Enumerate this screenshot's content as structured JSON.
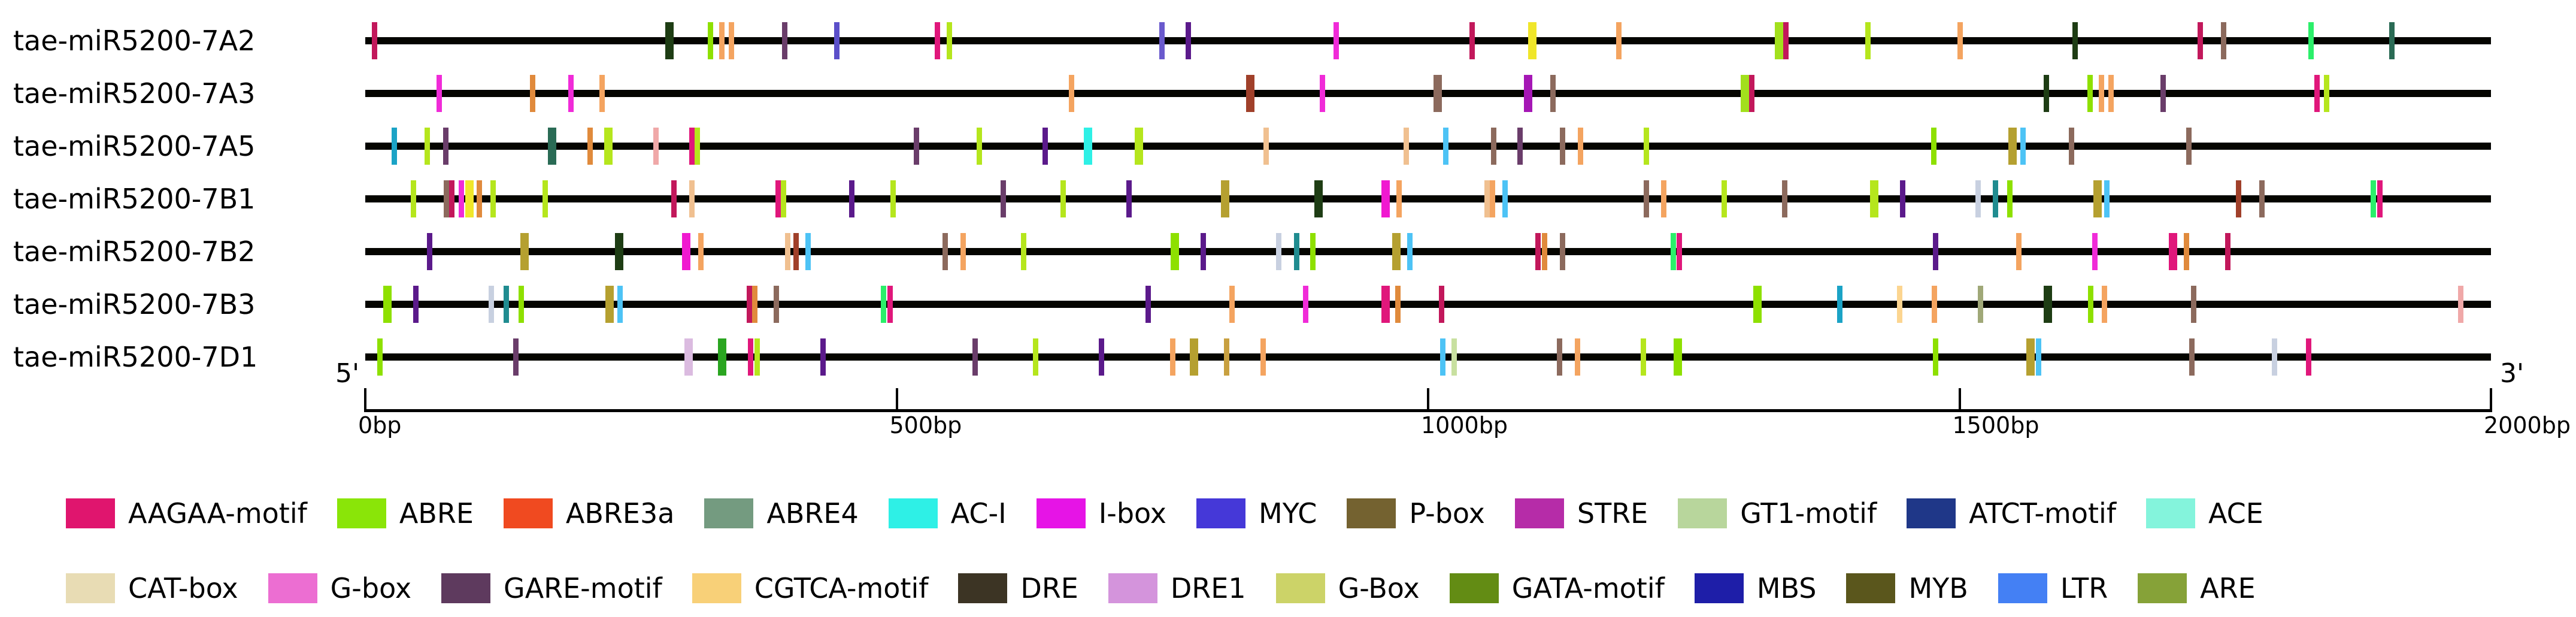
{
  "chart_data": {
    "type": "diagram",
    "title": "",
    "axis": {
      "start_label": "5'",
      "end_label": "3'",
      "ticks": [
        "0bp",
        "500bp",
        "1000bp",
        "1500bp",
        "2000bp"
      ],
      "range": [
        0,
        2000
      ],
      "unit": "bp"
    },
    "genes": [
      {
        "name": "tae-miR5200-7A2",
        "markers": [
          {
            "bp": 6,
            "color": "#c2185b"
          },
          {
            "bp": 282,
            "color": "#1e3d14",
            "wide": true
          },
          {
            "bp": 322,
            "color": "#8ee000"
          },
          {
            "bp": 333,
            "color": "#f4a460"
          },
          {
            "bp": 342,
            "color": "#f4a460"
          },
          {
            "bp": 392,
            "color": "#6a3d6a"
          },
          {
            "bp": 441,
            "color": "#5b4fc9"
          },
          {
            "bp": 536,
            "color": "#e0177b"
          },
          {
            "bp": 547,
            "color": "#b5e61d"
          },
          {
            "bp": 747,
            "color": "#6a5acd"
          },
          {
            "bp": 772,
            "color": "#5b1a8b"
          },
          {
            "bp": 911,
            "color": "#f02bd8"
          },
          {
            "bp": 1039,
            "color": "#c2185b"
          },
          {
            "bp": 1094,
            "color": "#f0e62a",
            "wide": true
          },
          {
            "bp": 1177,
            "color": "#f4a460"
          },
          {
            "bp": 1326,
            "color": "#a2e01d",
            "wide": true
          },
          {
            "bp": 1334,
            "color": "#c2185b"
          },
          {
            "bp": 1411,
            "color": "#b5e61d"
          },
          {
            "bp": 1498,
            "color": "#f4a460"
          },
          {
            "bp": 1606,
            "color": "#1e3d14"
          },
          {
            "bp": 1724,
            "color": "#c2185b"
          },
          {
            "bp": 1746,
            "color": "#8c6a5d"
          },
          {
            "bp": 1828,
            "color": "#2bef6a"
          },
          {
            "bp": 1904,
            "color": "#2a6b55"
          }
        ]
      },
      {
        "name": "tae-miR5200-7A3",
        "markers": [
          {
            "bp": 67,
            "color": "#f02bd8"
          },
          {
            "bp": 155,
            "color": "#e08a3c"
          },
          {
            "bp": 191,
            "color": "#f02bd8"
          },
          {
            "bp": 220,
            "color": "#f4a460"
          },
          {
            "bp": 662,
            "color": "#f4a460"
          },
          {
            "bp": 829,
            "color": "#a0402a",
            "wide": true
          },
          {
            "bp": 898,
            "color": "#f02bd8"
          },
          {
            "bp": 1005,
            "color": "#8c6a5d",
            "wide": true
          },
          {
            "bp": 1090,
            "color": "#a517b5",
            "wide": true
          },
          {
            "bp": 1115,
            "color": "#8c6a5d"
          },
          {
            "bp": 1294,
            "color": "#a2e01d",
            "wide": true
          },
          {
            "bp": 1302,
            "color": "#c2185b"
          },
          {
            "bp": 1579,
            "color": "#1e3d14"
          },
          {
            "bp": 1620,
            "color": "#8ee000"
          },
          {
            "bp": 1631,
            "color": "#f4a460"
          },
          {
            "bp": 1640,
            "color": "#f4a460"
          },
          {
            "bp": 1689,
            "color": "#6a3d6a"
          },
          {
            "bp": 1834,
            "color": "#e0177b"
          },
          {
            "bp": 1843,
            "color": "#b5e61d"
          }
        ]
      },
      {
        "name": "tae-miR5200-7A5",
        "markers": [
          {
            "bp": 25,
            "color": "#1ba3c6"
          },
          {
            "bp": 56,
            "color": "#b5e61d"
          },
          {
            "bp": 73,
            "color": "#6a3d6a"
          },
          {
            "bp": 172,
            "color": "#2a6b55",
            "wide": true
          },
          {
            "bp": 209,
            "color": "#e08a3c"
          },
          {
            "bp": 225,
            "color": "#b5e61d",
            "wide": true
          },
          {
            "bp": 271,
            "color": "#f0a8a8"
          },
          {
            "bp": 305,
            "color": "#e0177b"
          },
          {
            "bp": 310,
            "color": "#b5e61d"
          },
          {
            "bp": 516,
            "color": "#6a3d6a"
          },
          {
            "bp": 575,
            "color": "#b5e61d"
          },
          {
            "bp": 637,
            "color": "#5b1a8b"
          },
          {
            "bp": 676,
            "color": "#2ef0e6",
            "wide": true
          },
          {
            "bp": 724,
            "color": "#b5e61d",
            "wide": true
          },
          {
            "bp": 845,
            "color": "#f0c090"
          },
          {
            "bp": 977,
            "color": "#f0c090"
          },
          {
            "bp": 1014,
            "color": "#4dc3f5"
          },
          {
            "bp": 1059,
            "color": "#8c6a5d"
          },
          {
            "bp": 1084,
            "color": "#6a3d6a"
          },
          {
            "bp": 1124,
            "color": "#8c6a5d"
          },
          {
            "bp": 1141,
            "color": "#f4a460"
          },
          {
            "bp": 1203,
            "color": "#b5e61d"
          },
          {
            "bp": 1473,
            "color": "#8ee000"
          },
          {
            "bp": 1546,
            "color": "#b5a030",
            "wide": true
          },
          {
            "bp": 1557,
            "color": "#4dc3f5"
          },
          {
            "bp": 1603,
            "color": "#8c6a5d"
          },
          {
            "bp": 1713,
            "color": "#8c6a5d"
          }
        ]
      },
      {
        "name": "tae-miR5200-7B1",
        "markers": [
          {
            "bp": 43,
            "color": "#b5e61d"
          },
          {
            "bp": 74,
            "color": "#8c6a5d"
          },
          {
            "bp": 79,
            "color": "#c2185b"
          },
          {
            "bp": 88,
            "color": "#f02bd8"
          },
          {
            "bp": 94,
            "color": "#f0e62a",
            "wide": true
          },
          {
            "bp": 105,
            "color": "#e08a3c"
          },
          {
            "bp": 118,
            "color": "#b5e61d"
          },
          {
            "bp": 167,
            "color": "#b5e61d"
          },
          {
            "bp": 288,
            "color": "#c2185b"
          },
          {
            "bp": 305,
            "color": "#f0c090"
          },
          {
            "bp": 386,
            "color": "#e0177b"
          },
          {
            "bp": 391,
            "color": "#b5e61d"
          },
          {
            "bp": 455,
            "color": "#5b1a8b"
          },
          {
            "bp": 494,
            "color": "#b5e61d"
          },
          {
            "bp": 598,
            "color": "#6a3d6a"
          },
          {
            "bp": 654,
            "color": "#b5e61d"
          },
          {
            "bp": 716,
            "color": "#5b1a8b"
          },
          {
            "bp": 805,
            "color": "#b5a030",
            "wide": true
          },
          {
            "bp": 893,
            "color": "#1e3d14",
            "wide": true
          },
          {
            "bp": 956,
            "color": "#f019d0",
            "wide": true
          },
          {
            "bp": 970,
            "color": "#f4a460"
          },
          {
            "bp": 1053,
            "color": "#f0c090"
          },
          {
            "bp": 1058,
            "color": "#f4a460"
          },
          {
            "bp": 1070,
            "color": "#4dc3f5"
          },
          {
            "bp": 1203,
            "color": "#8c6a5d"
          },
          {
            "bp": 1219,
            "color": "#f4a460"
          },
          {
            "bp": 1276,
            "color": "#b5e61d"
          },
          {
            "bp": 1333,
            "color": "#8c6a5d"
          },
          {
            "bp": 1416,
            "color": "#b5e61d",
            "wide": true
          },
          {
            "bp": 1444,
            "color": "#5b1a8b"
          },
          {
            "bp": 1515,
            "color": "#c8d0e0"
          },
          {
            "bp": 1531,
            "color": "#208c90"
          },
          {
            "bp": 1545,
            "color": "#8ee000"
          },
          {
            "bp": 1626,
            "color": "#b5a030",
            "wide": true
          },
          {
            "bp": 1636,
            "color": "#4dc3f5"
          },
          {
            "bp": 1760,
            "color": "#a0402a"
          },
          {
            "bp": 1782,
            "color": "#8c6a5d"
          },
          {
            "bp": 1887,
            "color": "#2bef6a"
          },
          {
            "bp": 1893,
            "color": "#e0177b"
          }
        ]
      },
      {
        "name": "tae-miR5200-7B2",
        "markers": [
          {
            "bp": 58,
            "color": "#5b1a8b"
          },
          {
            "bp": 146,
            "color": "#b5a030",
            "wide": true
          },
          {
            "bp": 235,
            "color": "#1e3d14",
            "wide": true
          },
          {
            "bp": 298,
            "color": "#f019d0",
            "wide": true
          },
          {
            "bp": 313,
            "color": "#f4a460"
          },
          {
            "bp": 395,
            "color": "#f0c090"
          },
          {
            "bp": 403,
            "color": "#a0402a"
          },
          {
            "bp": 414,
            "color": "#4dc3f5"
          },
          {
            "bp": 543,
            "color": "#8c6a5d"
          },
          {
            "bp": 560,
            "color": "#f4a460"
          },
          {
            "bp": 617,
            "color": "#b5e61d"
          },
          {
            "bp": 758,
            "color": "#8ee000",
            "wide": true
          },
          {
            "bp": 786,
            "color": "#5b1a8b"
          },
          {
            "bp": 857,
            "color": "#c8d0e0"
          },
          {
            "bp": 874,
            "color": "#208c90"
          },
          {
            "bp": 889,
            "color": "#8ee000"
          },
          {
            "bp": 966,
            "color": "#b5a030",
            "wide": true
          },
          {
            "bp": 980,
            "color": "#4dc3f5"
          },
          {
            "bp": 1101,
            "color": "#c2185b"
          },
          {
            "bp": 1107,
            "color": "#e08a3c"
          },
          {
            "bp": 1124,
            "color": "#8c6a5d"
          },
          {
            "bp": 1228,
            "color": "#2bef6a"
          },
          {
            "bp": 1234,
            "color": "#e0177b"
          },
          {
            "bp": 1475,
            "color": "#5b1a8b"
          },
          {
            "bp": 1553,
            "color": "#f4a460"
          },
          {
            "bp": 1625,
            "color": "#f02bd8"
          },
          {
            "bp": 1697,
            "color": "#e0177b",
            "wide": true
          },
          {
            "bp": 1711,
            "color": "#e08a3c"
          },
          {
            "bp": 1750,
            "color": "#c2185b"
          }
        ]
      },
      {
        "name": "tae-miR5200-7B3",
        "markers": [
          {
            "bp": 17,
            "color": "#8ee000",
            "wide": true
          },
          {
            "bp": 45,
            "color": "#5b1a8b"
          },
          {
            "bp": 116,
            "color": "#c8d0e0"
          },
          {
            "bp": 130,
            "color": "#208c90"
          },
          {
            "bp": 144,
            "color": "#8ee000"
          },
          {
            "bp": 226,
            "color": "#b5a030",
            "wide": true
          },
          {
            "bp": 237,
            "color": "#4dc3f5"
          },
          {
            "bp": 359,
            "color": "#c2185b"
          },
          {
            "bp": 364,
            "color": "#e08a3c"
          },
          {
            "bp": 384,
            "color": "#8c6a5d"
          },
          {
            "bp": 485,
            "color": "#2bef6a"
          },
          {
            "bp": 491,
            "color": "#e0177b"
          },
          {
            "bp": 734,
            "color": "#5b1a8b"
          },
          {
            "bp": 813,
            "color": "#f4a460"
          },
          {
            "bp": 882,
            "color": "#f02bd8"
          },
          {
            "bp": 956,
            "color": "#e0177b",
            "wide": true
          },
          {
            "bp": 969,
            "color": "#e08a3c"
          },
          {
            "bp": 1010,
            "color": "#c2185b"
          },
          {
            "bp": 1306,
            "color": "#8ee000",
            "wide": true
          },
          {
            "bp": 1385,
            "color": "#1ba3c6"
          },
          {
            "bp": 1441,
            "color": "#fcd590"
          },
          {
            "bp": 1474,
            "color": "#f4a460"
          },
          {
            "bp": 1517,
            "color": "#a0a878"
          },
          {
            "bp": 1579,
            "color": "#1e3d14",
            "wide": true
          },
          {
            "bp": 1621,
            "color": "#8ee000"
          },
          {
            "bp": 1634,
            "color": "#f4a460"
          },
          {
            "bp": 1718,
            "color": "#8c6a5d"
          },
          {
            "bp": 1969,
            "color": "#f0a8a8"
          }
        ]
      },
      {
        "name": "tae-miR5200-7D1",
        "markers": [
          {
            "bp": 11,
            "color": "#8ee000"
          },
          {
            "bp": 139,
            "color": "#6a3d6a"
          },
          {
            "bp": 300,
            "color": "#dbbbe0",
            "wide": true
          },
          {
            "bp": 332,
            "color": "#2aa520",
            "wide": true
          },
          {
            "bp": 360,
            "color": "#e0177b"
          },
          {
            "bp": 366,
            "color": "#b5e61d"
          },
          {
            "bp": 428,
            "color": "#5b1a8b"
          },
          {
            "bp": 571,
            "color": "#6a3d6a"
          },
          {
            "bp": 628,
            "color": "#b5e61d"
          },
          {
            "bp": 690,
            "color": "#5b1a8b"
          },
          {
            "bp": 757,
            "color": "#f4a460"
          },
          {
            "bp": 776,
            "color": "#b5a030",
            "wide": true
          },
          {
            "bp": 808,
            "color": "#c8a040"
          },
          {
            "bp": 842,
            "color": "#f4a460"
          },
          {
            "bp": 1011,
            "color": "#4dc3f5"
          },
          {
            "bp": 1022,
            "color": "#c8e0a0"
          },
          {
            "bp": 1121,
            "color": "#8c6a5d"
          },
          {
            "bp": 1138,
            "color": "#f4a460"
          },
          {
            "bp": 1200,
            "color": "#b5e61d"
          },
          {
            "bp": 1231,
            "color": "#8ee000",
            "wide": true
          },
          {
            "bp": 1475,
            "color": "#8ee000"
          },
          {
            "bp": 1563,
            "color": "#b5a030",
            "wide": true
          },
          {
            "bp": 1572,
            "color": "#4dc3f5"
          },
          {
            "bp": 1716,
            "color": "#8c6a5d"
          },
          {
            "bp": 1794,
            "color": "#c8d0e0"
          },
          {
            "bp": 1826,
            "color": "#e0177b"
          }
        ]
      }
    ],
    "legend": [
      {
        "label": "AAGAA-motif",
        "color": "#e0156e"
      },
      {
        "label": "ABRE",
        "color": "#8ae508"
      },
      {
        "label": "ABRE3a",
        "color": "#f04a20"
      },
      {
        "label": "ABRE4",
        "color": "#749b80"
      },
      {
        "label": "AC-I",
        "color": "#2ef0e6"
      },
      {
        "label": "I-box",
        "color": "#e614e6"
      },
      {
        "label": "MYC",
        "color": "#4538d8"
      },
      {
        "label": "P-box",
        "color": "#746230"
      },
      {
        "label": "STRE",
        "color": "#b62ca8"
      },
      {
        "label": "GT1-motif",
        "color": "#b8d69c"
      },
      {
        "label": "ATCT-motif",
        "color": "#1f3788"
      },
      {
        "label": "ACE",
        "color": "#84f4dc"
      },
      {
        "label": "CAT-box",
        "color": "#e8dcb4"
      },
      {
        "label": "G-box",
        "color": "#ec6ed2"
      },
      {
        "label": "GARE-motif",
        "color": "#5e3a5e"
      },
      {
        "label": "CGTCA-motif",
        "color": "#f8d078"
      },
      {
        "label": "DRE",
        "color": "#3c3424"
      },
      {
        "label": "DRE1",
        "color": "#d494dc"
      },
      {
        "label": "G-Box",
        "color": "#ccd368"
      },
      {
        "label": "GATA-motif",
        "color": "#638c14"
      },
      {
        "label": "MBS",
        "color": "#1e1ea8"
      },
      {
        "label": "MYB",
        "color": "#5a561c"
      },
      {
        "label": "LTR",
        "color": "#4480f4"
      },
      {
        "label": "ARE",
        "color": "#86a238"
      }
    ]
  }
}
